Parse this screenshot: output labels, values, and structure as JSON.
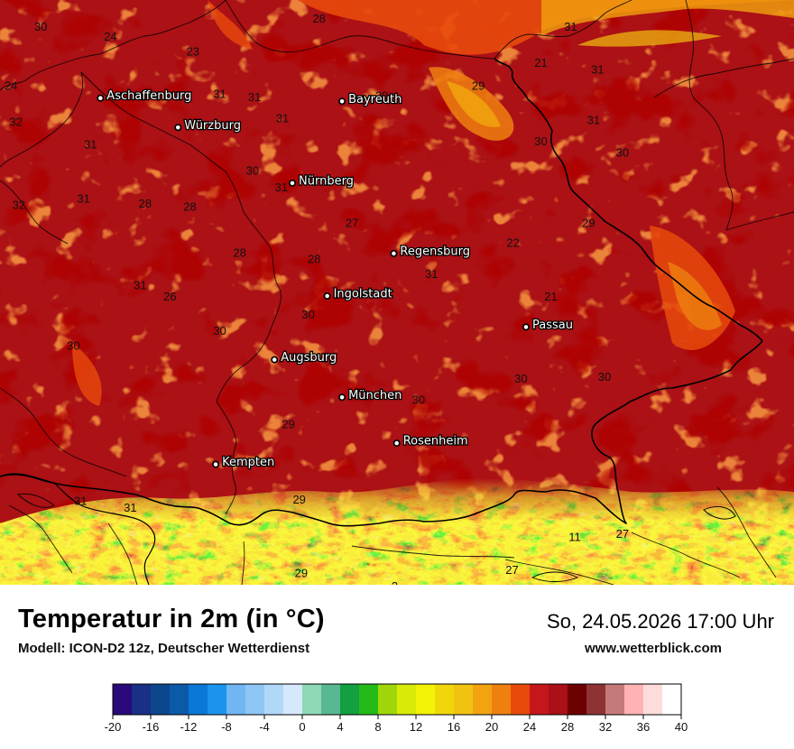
{
  "title": "Temperatur in 2m (in °C)",
  "model": "Modell: ICON-D2 12z, Deutscher Wetterdienst",
  "datetime": "So, 24.05.2026 17:00 Uhr",
  "website": "www.wetterblick.com",
  "cities": [
    {
      "name": "Aschaffenburg",
      "lon": 9.15,
      "lat": 49.97
    },
    {
      "name": "Würzburg",
      "lon": 9.93,
      "lat": 49.79
    },
    {
      "name": "Bayreuth",
      "lon": 11.58,
      "lat": 49.95
    },
    {
      "name": "Nürnberg",
      "lon": 11.08,
      "lat": 49.45
    },
    {
      "name": "Regensburg",
      "lon": 12.1,
      "lat": 49.02
    },
    {
      "name": "Ingolstadt",
      "lon": 11.43,
      "lat": 48.76
    },
    {
      "name": "Passau",
      "lon": 13.43,
      "lat": 48.57
    },
    {
      "name": "Augsburg",
      "lon": 10.9,
      "lat": 48.37
    },
    {
      "name": "München",
      "lon": 11.58,
      "lat": 48.14
    },
    {
      "name": "Rosenheim",
      "lon": 12.13,
      "lat": 47.86
    },
    {
      "name": "Kempten",
      "lon": 10.31,
      "lat": 47.73
    }
  ],
  "temperature_labels": [
    {
      "t": "30",
      "lon": 8.55,
      "lat": 50.4
    },
    {
      "t": "24",
      "lon": 9.25,
      "lat": 50.34
    },
    {
      "t": "23",
      "lon": 10.08,
      "lat": 50.25
    },
    {
      "t": "28",
      "lon": 11.35,
      "lat": 50.45
    },
    {
      "t": "31",
      "lon": 13.88,
      "lat": 50.4
    },
    {
      "t": "21",
      "lon": 13.58,
      "lat": 50.18
    },
    {
      "t": "31",
      "lon": 14.15,
      "lat": 50.14
    },
    {
      "t": "24",
      "lon": 8.25,
      "lat": 50.04
    },
    {
      "t": "29",
      "lon": 12.95,
      "lat": 50.04
    },
    {
      "t": "31",
      "lon": 10.35,
      "lat": 49.99
    },
    {
      "t": "31",
      "lon": 10.7,
      "lat": 49.97
    },
    {
      "t": "20",
      "lon": 11.98,
      "lat": 49.98
    },
    {
      "t": "32",
      "lon": 8.3,
      "lat": 49.82
    },
    {
      "t": "31",
      "lon": 10.98,
      "lat": 49.84
    },
    {
      "t": "31",
      "lon": 14.11,
      "lat": 49.83
    },
    {
      "t": "31",
      "lon": 9.05,
      "lat": 49.68
    },
    {
      "t": "30",
      "lon": 13.58,
      "lat": 49.7
    },
    {
      "t": "30",
      "lon": 14.4,
      "lat": 49.63
    },
    {
      "t": "30",
      "lon": 10.68,
      "lat": 49.52
    },
    {
      "t": "31",
      "lon": 10.97,
      "lat": 49.42
    },
    {
      "t": "31",
      "lon": 8.98,
      "lat": 49.35
    },
    {
      "t": "28",
      "lon": 10.05,
      "lat": 49.3
    },
    {
      "t": "28",
      "lon": 9.6,
      "lat": 49.32
    },
    {
      "t": "32",
      "lon": 8.33,
      "lat": 49.31
    },
    {
      "t": "27",
      "lon": 11.68,
      "lat": 49.2
    },
    {
      "t": "29",
      "lon": 14.06,
      "lat": 49.2
    },
    {
      "t": "22",
      "lon": 13.3,
      "lat": 49.08
    },
    {
      "t": "28",
      "lon": 10.55,
      "lat": 49.02
    },
    {
      "t": "28",
      "lon": 11.3,
      "lat": 48.98
    },
    {
      "t": "31",
      "lon": 12.48,
      "lat": 48.89
    },
    {
      "t": "31",
      "lon": 9.55,
      "lat": 48.82
    },
    {
      "t": "26",
      "lon": 9.85,
      "lat": 48.75
    },
    {
      "t": "21",
      "lon": 13.68,
      "lat": 48.75
    },
    {
      "t": "30",
      "lon": 11.24,
      "lat": 48.64
    },
    {
      "t": "30",
      "lon": 10.35,
      "lat": 48.54
    },
    {
      "t": "30",
      "lon": 8.88,
      "lat": 48.45
    },
    {
      "t": "30",
      "lon": 13.38,
      "lat": 48.25
    },
    {
      "t": "30",
      "lon": 14.22,
      "lat": 48.26
    },
    {
      "t": "30",
      "lon": 12.35,
      "lat": 48.12
    },
    {
      "t": "29",
      "lon": 11.04,
      "lat": 47.97
    },
    {
      "t": "30",
      "lon": 12.68,
      "lat": 47.87
    },
    {
      "t": "29",
      "lon": 11.15,
      "lat": 47.51
    },
    {
      "t": "31",
      "lon": 8.95,
      "lat": 47.5
    },
    {
      "t": "31",
      "lon": 9.45,
      "lat": 47.46
    },
    {
      "t": "11",
      "lon": 13.92,
      "lat": 47.28
    },
    {
      "t": "27",
      "lon": 14.4,
      "lat": 47.3
    },
    {
      "t": "27",
      "lon": 13.29,
      "lat": 47.08
    },
    {
      "t": "29",
      "lon": 11.17,
      "lat": 47.06
    },
    {
      "t": "3",
      "lon": 12.11,
      "lat": 46.98
    }
  ],
  "legend": {
    "ticks": [
      "-20",
      "-16",
      "-12",
      "-8",
      "-4",
      "0",
      "4",
      "8",
      "12",
      "16",
      "20",
      "24",
      "28",
      "32",
      "36",
      "40"
    ],
    "min": -20,
    "max": 40,
    "step": 2,
    "colors": [
      "#2a0a7a",
      "#1a2f86",
      "#0b468d",
      "#0a5aa8",
      "#0a78d6",
      "#1c94ee",
      "#6fb6f3",
      "#8ec6f6",
      "#b2d8f8",
      "#d6e8fb",
      "#8ed8b6",
      "#58b893",
      "#12a040",
      "#24bb18",
      "#9fd60a",
      "#d8ea08",
      "#f2f204",
      "#f1d70a",
      "#f1c20f",
      "#f1a40f",
      "#ee800f",
      "#e84a0c",
      "#c5161c",
      "#ab0f17",
      "#6d0000",
      "#8f3234",
      "#c57a7a",
      "#ffb3b3",
      "#ffdcdc",
      "#ffffff"
    ]
  },
  "colors": {
    "border": "#000000",
    "ocean_land": "#ab1115"
  }
}
